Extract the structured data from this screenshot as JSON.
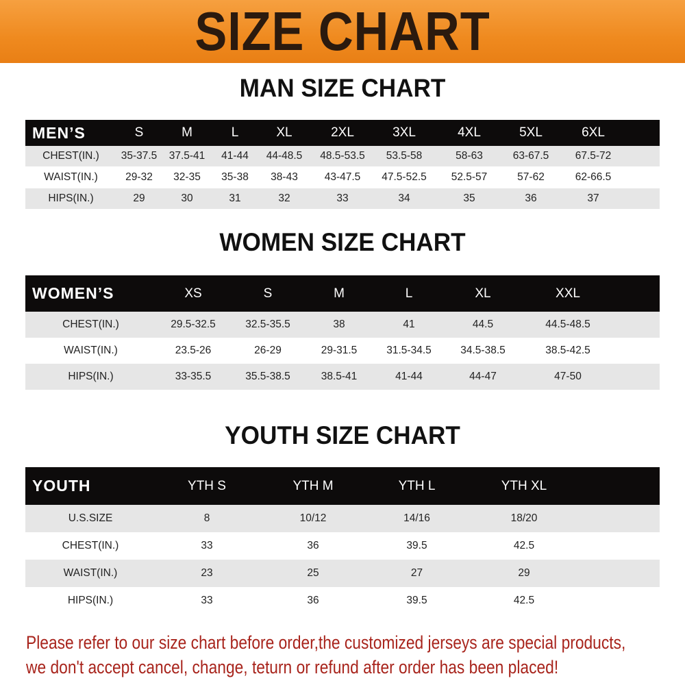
{
  "title": "SIZE CHART",
  "colors": {
    "banner": "#ef8a1f",
    "header_row": "#0d0b0b",
    "stripe": "#e6e6e6",
    "notice": "#a8241c"
  },
  "tables": [
    {
      "title": "MAN SIZE CHART",
      "header": [
        "MEN’S",
        "S",
        "M",
        "L",
        "XL",
        "2XL",
        "3XL",
        "4XL",
        "5XL",
        "6XL"
      ],
      "rows": [
        [
          "CHEST(IN.)",
          "35-37.5",
          "37.5-41",
          "41-44",
          "44-48.5",
          "48.5-53.5",
          "53.5-58",
          "58-63",
          "63-67.5",
          "67.5-72"
        ],
        [
          "WAIST(IN.)",
          "29-32",
          "32-35",
          "35-38",
          "38-43",
          "43-47.5",
          "47.5-52.5",
          "52.5-57",
          "57-62",
          "62-66.5"
        ],
        [
          "HIPS(IN.)",
          "29",
          "30",
          "31",
          "32",
          "33",
          "34",
          "35",
          "36",
          "37"
        ]
      ]
    },
    {
      "title": "WOMEN SIZE CHART",
      "header": [
        "WOMEN’S",
        "XS",
        "S",
        "M",
        "L",
        "XL",
        "XXL"
      ],
      "rows": [
        [
          "CHEST(IN.)",
          "29.5-32.5",
          "32.5-35.5",
          "38",
          "41",
          "44.5",
          "44.5-48.5"
        ],
        [
          "WAIST(IN.)",
          "23.5-26",
          "26-29",
          "29-31.5",
          "31.5-34.5",
          "34.5-38.5",
          "38.5-42.5"
        ],
        [
          "HIPS(IN.)",
          "33-35.5",
          "35.5-38.5",
          "38.5-41",
          "41-44",
          "44-47",
          "47-50"
        ]
      ]
    },
    {
      "title": "YOUTH SIZE CHART",
      "header": [
        "YOUTH",
        "YTH S",
        "YTH M",
        "YTH L",
        "YTH XL"
      ],
      "rows": [
        [
          "U.S.SIZE",
          "8",
          "10/12",
          "14/16",
          "18/20"
        ],
        [
          "CHEST(IN.)",
          "33",
          "36",
          "39.5",
          "42.5"
        ],
        [
          "WAIST(IN.)",
          "23",
          "25",
          "27",
          "29"
        ],
        [
          "HIPS(IN.)",
          "33",
          "36",
          "39.5",
          "42.5"
        ]
      ]
    }
  ],
  "notice": {
    "line1": "Please refer to our size chart before order,the customized jerseys are special products,",
    "line2": "we don't accept cancel, change, teturn or refund after order has been placed!"
  }
}
